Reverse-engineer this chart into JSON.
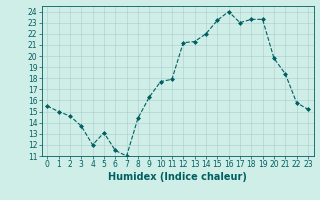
{
  "x": [
    0,
    1,
    2,
    3,
    4,
    5,
    6,
    7,
    8,
    9,
    10,
    11,
    12,
    13,
    14,
    15,
    16,
    17,
    18,
    19,
    20,
    21,
    22,
    23
  ],
  "y": [
    15.5,
    15.0,
    14.6,
    13.7,
    12.0,
    13.1,
    11.5,
    11.0,
    14.4,
    16.3,
    17.7,
    17.9,
    21.2,
    21.3,
    22.0,
    23.2,
    24.0,
    23.0,
    23.3,
    23.3,
    19.8,
    18.4,
    15.8,
    15.2
  ],
  "line_color": "#006060",
  "marker": "D",
  "marker_size": 2.0,
  "bg_color": "#d0eee8",
  "grid_color": "#aacccc",
  "xlabel": "Humidex (Indice chaleur)",
  "xlim": [
    -0.5,
    23.5
  ],
  "ylim": [
    11,
    24.5
  ],
  "yticks": [
    11,
    12,
    13,
    14,
    15,
    16,
    17,
    18,
    19,
    20,
    21,
    22,
    23,
    24
  ],
  "xticks": [
    0,
    1,
    2,
    3,
    4,
    5,
    6,
    7,
    8,
    9,
    10,
    11,
    12,
    13,
    14,
    15,
    16,
    17,
    18,
    19,
    20,
    21,
    22,
    23
  ],
  "tick_fontsize": 5.5,
  "label_fontsize": 7.0,
  "axis_color": "#006060",
  "linewidth": 0.8
}
